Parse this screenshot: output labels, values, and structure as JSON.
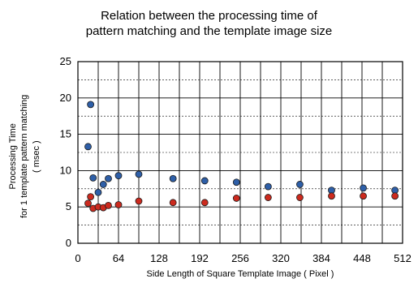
{
  "chart_data": {
    "type": "scatter",
    "title_lines": [
      "Relation between the processing time of",
      "pattern matching and the template image size"
    ],
    "xlabel": "Side Length of Square Template Image ( Pixel )",
    "ylabel_lines": [
      "Processing Time",
      "for 1 template pattern matching",
      "( msec )"
    ],
    "xlim": [
      0,
      512
    ],
    "ylim": [
      0,
      25
    ],
    "x_ticks": [
      0,
      64,
      128,
      192,
      256,
      320,
      384,
      448,
      512
    ],
    "y_ticks": [
      0,
      5,
      10,
      15,
      20,
      25
    ],
    "x_grid_step": 32,
    "grid": true,
    "series": [
      {
        "color": "#2e5fa8",
        "points": [
          [
            16,
            13.3
          ],
          [
            20,
            19.1
          ],
          [
            24,
            9.0
          ],
          [
            32,
            7.0
          ],
          [
            40,
            8.1
          ],
          [
            48,
            8.9
          ],
          [
            64,
            9.3
          ],
          [
            96,
            9.5
          ],
          [
            150,
            8.9
          ],
          [
            200,
            8.6
          ],
          [
            250,
            8.4
          ],
          [
            300,
            7.8
          ],
          [
            350,
            8.1
          ],
          [
            400,
            7.3
          ],
          [
            450,
            7.6
          ],
          [
            500,
            7.3
          ]
        ]
      },
      {
        "color": "#cc2a1e",
        "points": [
          [
            16,
            5.5
          ],
          [
            20,
            6.4
          ],
          [
            24,
            4.8
          ],
          [
            32,
            5.0
          ],
          [
            40,
            4.9
          ],
          [
            48,
            5.2
          ],
          [
            64,
            5.3
          ],
          [
            96,
            5.8
          ],
          [
            150,
            5.6
          ],
          [
            200,
            5.6
          ],
          [
            250,
            6.2
          ],
          [
            300,
            6.3
          ],
          [
            350,
            6.3
          ],
          [
            400,
            6.5
          ],
          [
            450,
            6.5
          ],
          [
            500,
            6.5
          ]
        ]
      }
    ]
  }
}
